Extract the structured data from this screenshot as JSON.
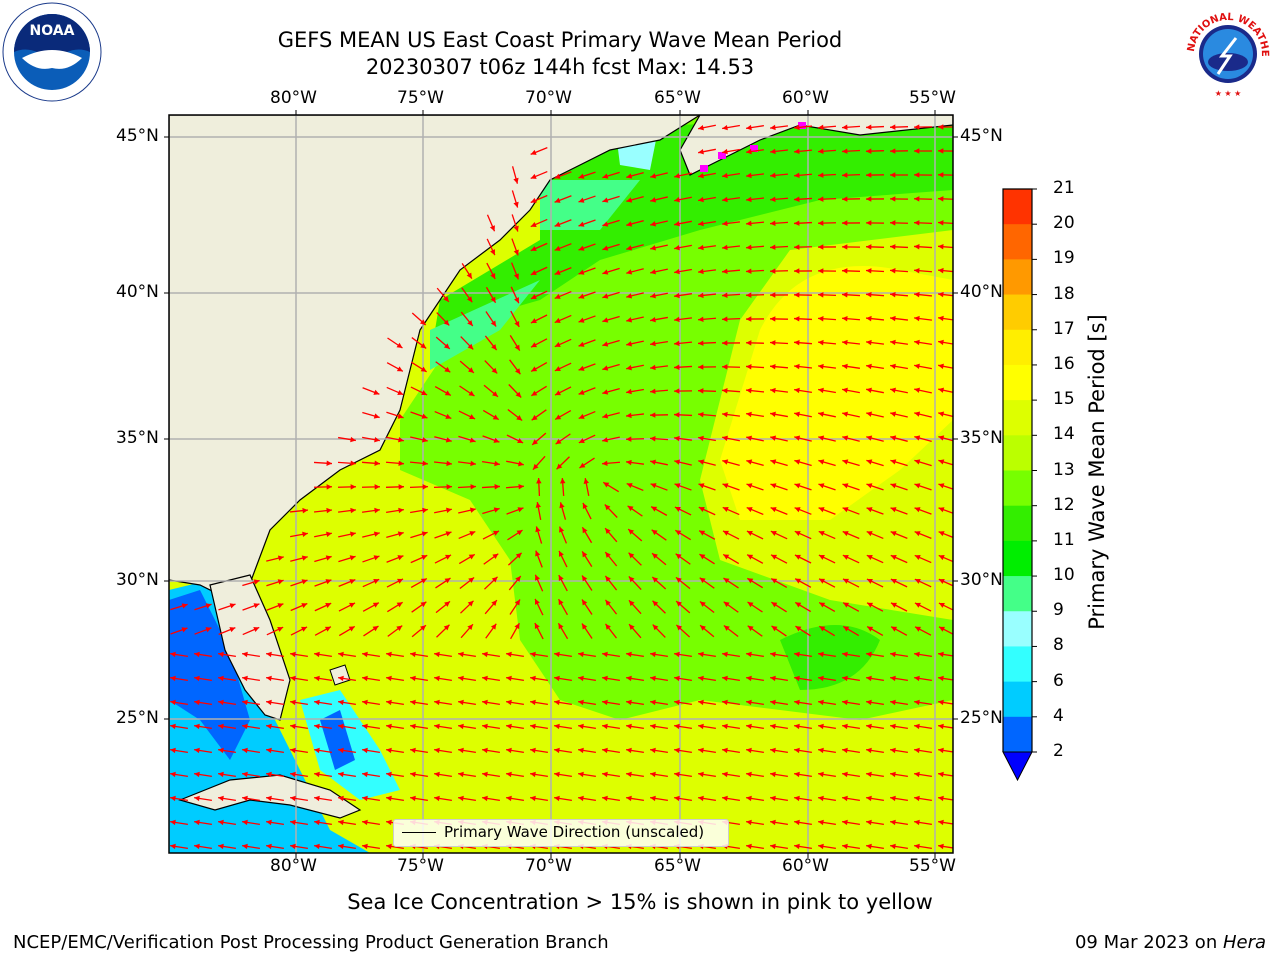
{
  "title_line1": "GEFS MEAN US East Coast Primary Wave Mean Period",
  "title_line2": "20230307 t06z 144h fcst   Max: 14.53",
  "subtitle": "Sea Ice Concentration > 15% is shown in pink to yellow",
  "footer_left": "NCEP/EMC/Verification Post Processing Product Generation Branch",
  "footer_right_date": "09 Mar 2023 on ",
  "footer_right_machine": "Hera",
  "legend_text": "Primary Wave Direction (unscaled)",
  "colorbar": {
    "title": "Primary Wave Mean Period [s]",
    "ticks": [
      "2",
      "4",
      "6",
      "8",
      "9",
      "10",
      "11",
      "12",
      "13",
      "14",
      "15",
      "16",
      "17",
      "18",
      "19",
      "20",
      "21"
    ],
    "colors": [
      "#0066ff",
      "#00ccff",
      "#33ffff",
      "#99ffff",
      "#44ff88",
      "#00ee00",
      "#33ee00",
      "#77ff00",
      "#bbff00",
      "#ddff00",
      "#ffff00",
      "#ffee00",
      "#ffcc00",
      "#ff9900",
      "#ff6600",
      "#ff3300"
    ],
    "extend_color": "#0000ff"
  },
  "map": {
    "lon_labels": [
      "80°W",
      "75°W",
      "70°W",
      "65°W",
      "60°W",
      "55°W"
    ],
    "lat_labels": [
      "45°N",
      "40°N",
      "35°N",
      "30°N",
      "25°N"
    ],
    "land_color": "#efeedc",
    "arrow_color": "#ff0000",
    "ice_color": "#ff00ff"
  },
  "logos": {
    "noaa": "NOAA",
    "nws": "NATIONAL WEATHER SERVICE"
  }
}
